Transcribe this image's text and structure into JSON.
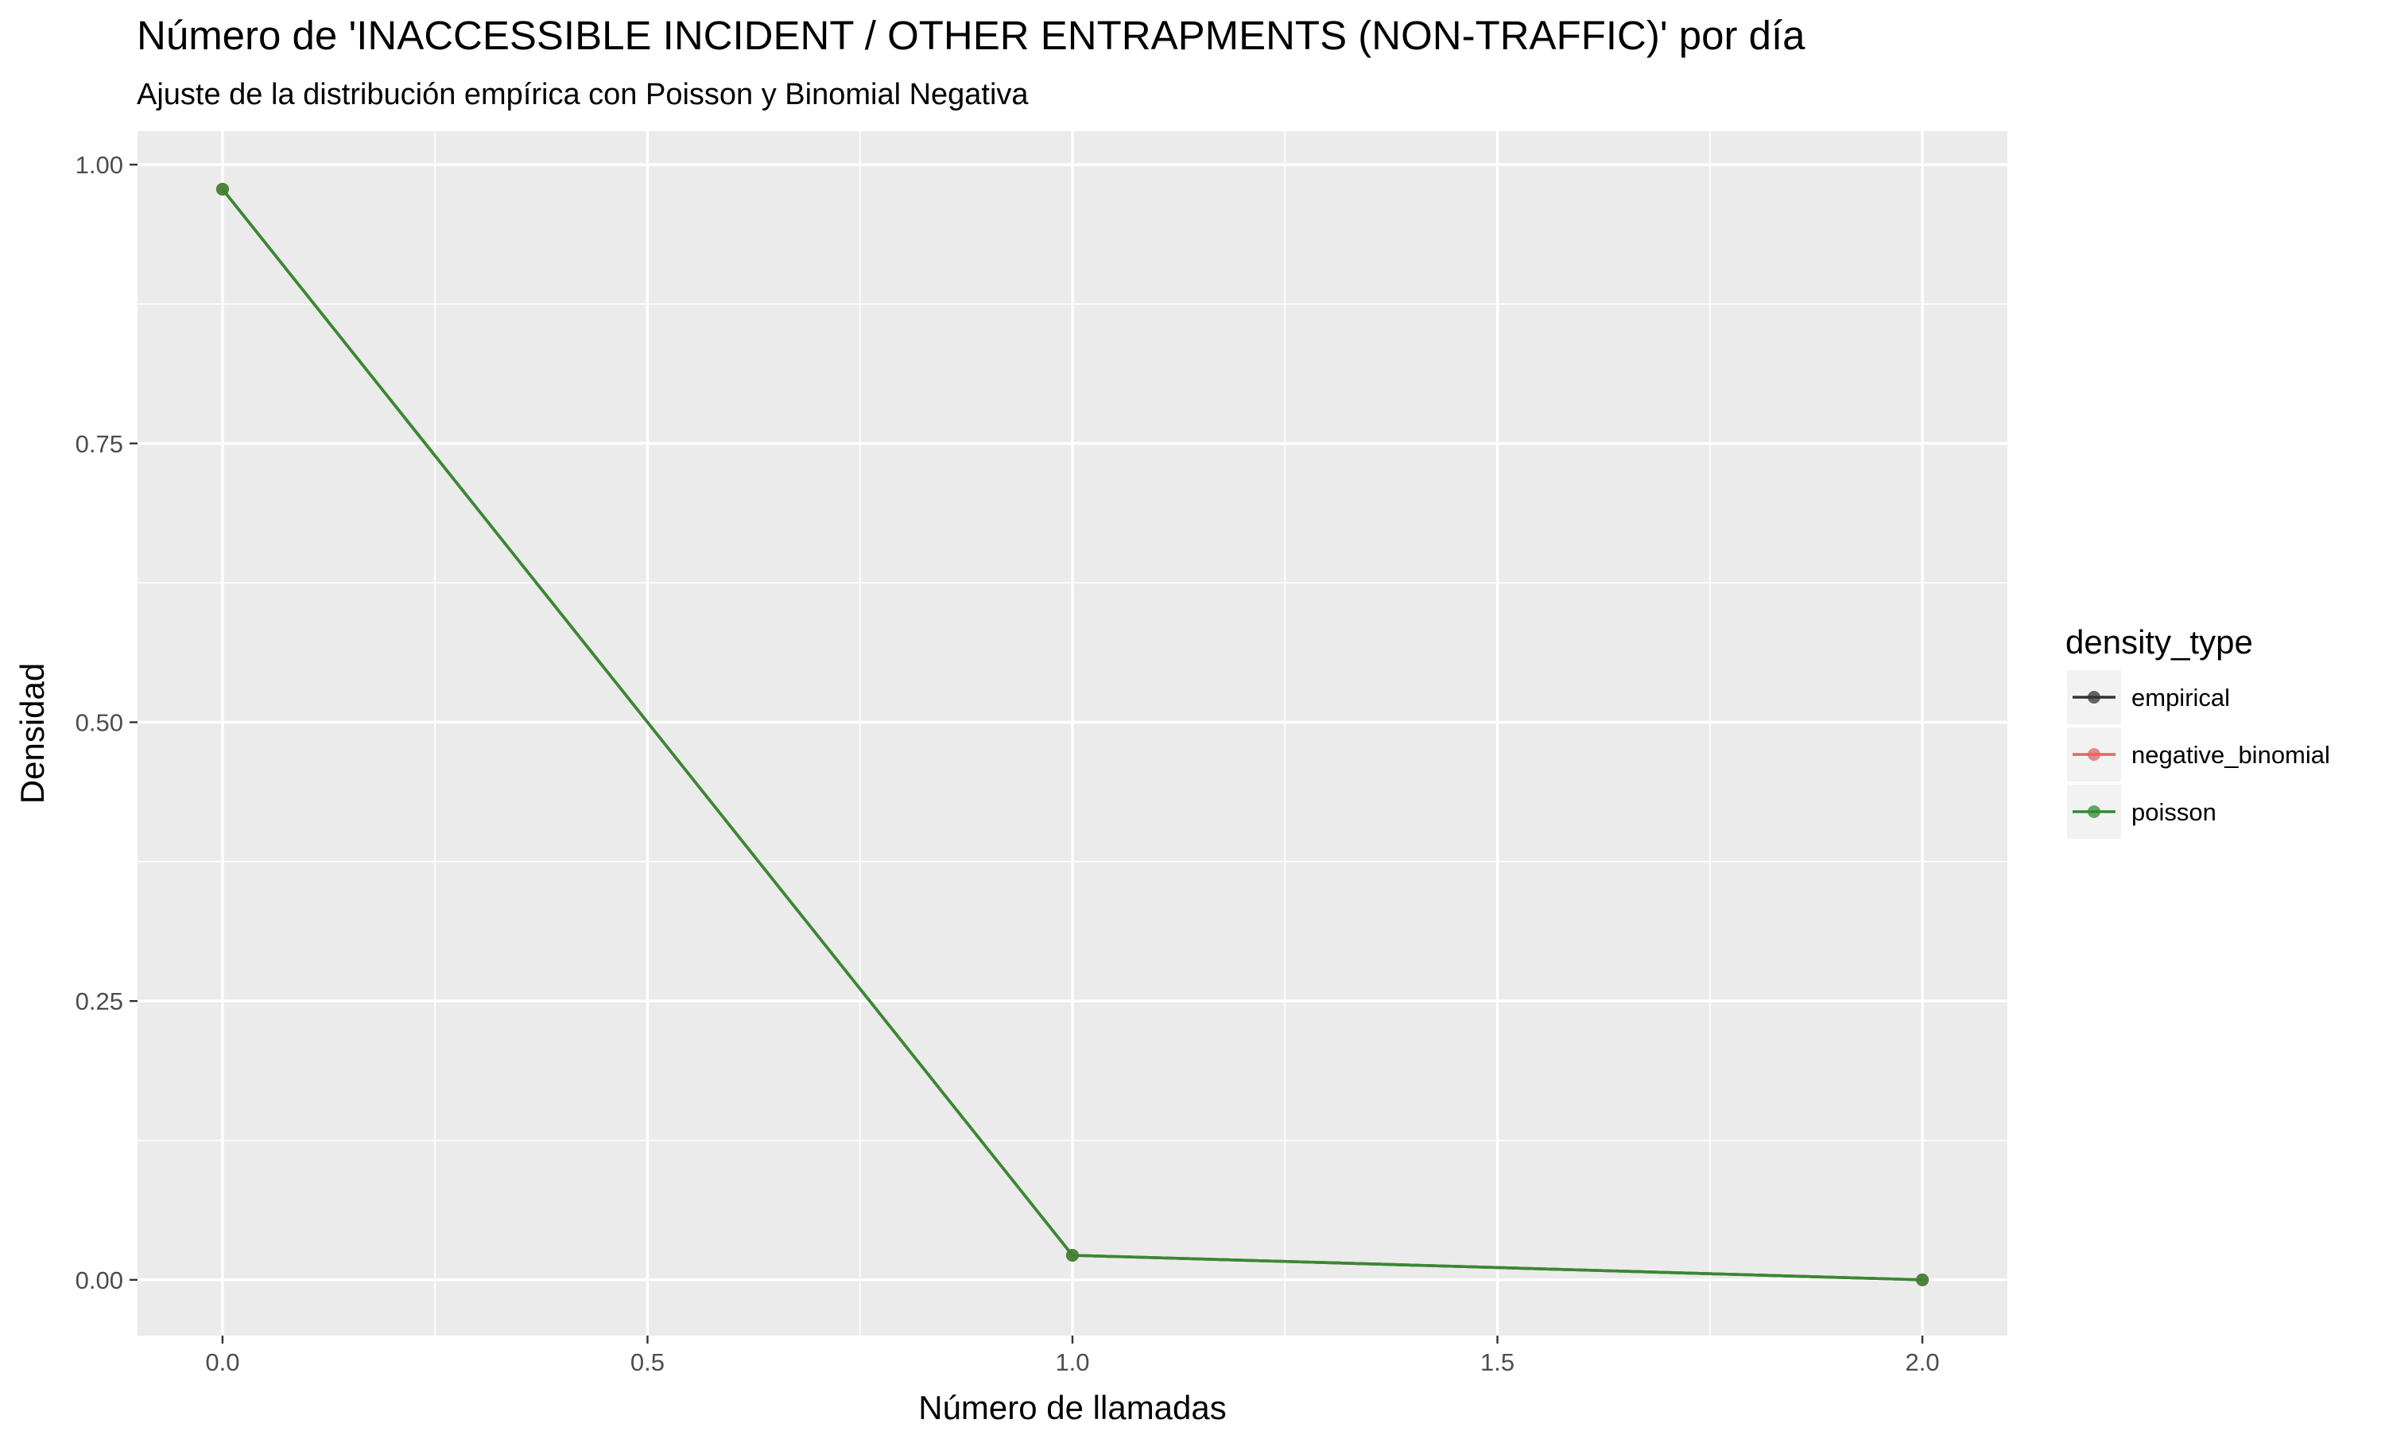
{
  "chart_data": {
    "type": "line",
    "title": "Número de 'INACCESSIBLE INCIDENT / OTHER ENTRAPMENTS (NON-TRAFFIC)' por día",
    "subtitle": "Ajuste de la distribución empírica con Poisson y Binomial Negativa",
    "xlabel": "Número de llamadas",
    "ylabel": "Densidad",
    "xlim": [
      -0.1,
      2.1
    ],
    "ylim": [
      -0.05,
      1.03
    ],
    "x_ticks": [
      "0.0",
      "0.5",
      "1.0",
      "1.5",
      "2.0"
    ],
    "y_ticks": [
      "0.00",
      "0.25",
      "0.50",
      "0.75",
      "1.00"
    ],
    "grid": true,
    "legend": {
      "title": "density_type",
      "position": "right"
    },
    "x": [
      0,
      1,
      2
    ],
    "series": [
      {
        "name": "empirical",
        "color": "#333333",
        "values": [
          0.978,
          0.022,
          0.0
        ]
      },
      {
        "name": "negative_binomial",
        "color": "#e06666",
        "values": [
          0.978,
          0.022,
          0.0
        ]
      },
      {
        "name": "poisson",
        "color": "#2e8b2e",
        "values": [
          0.978,
          0.022,
          0.0
        ]
      }
    ]
  }
}
